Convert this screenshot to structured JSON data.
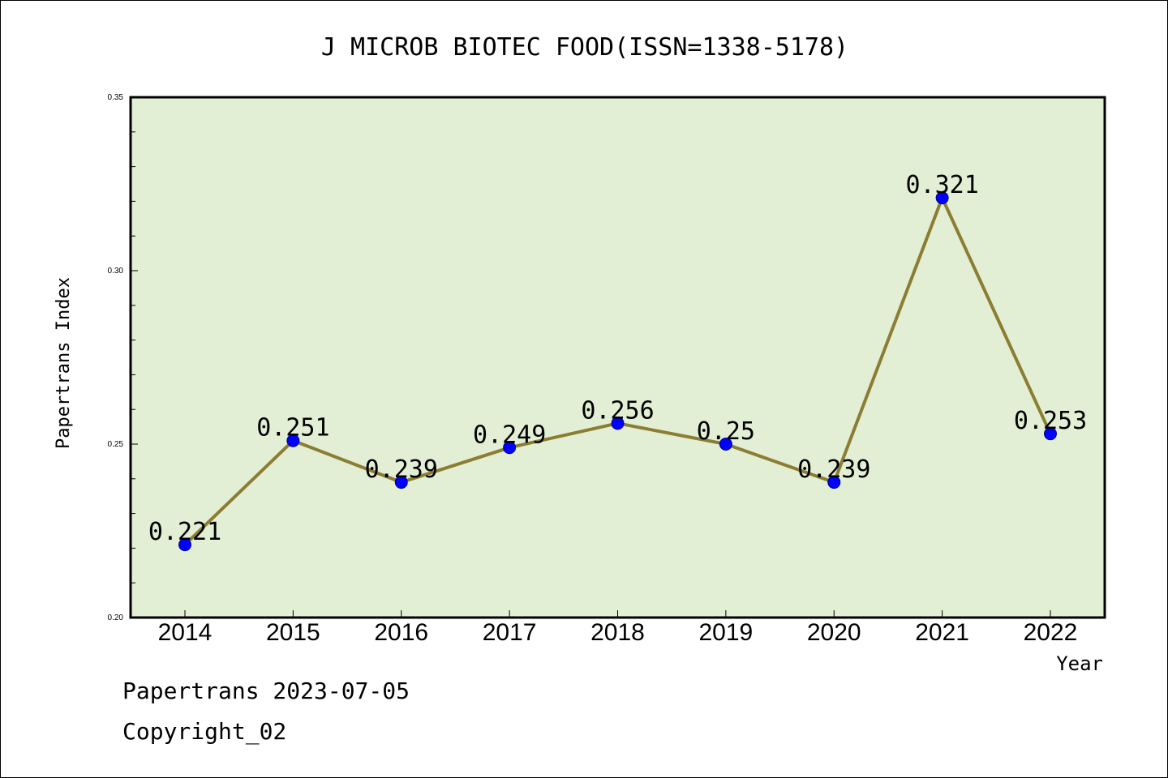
{
  "chart_data": {
    "type": "line",
    "title": "J MICROB BIOTEC FOOD(ISSN=1338-5178)",
    "xlabel": "Year",
    "ylabel": "Papertrans Index",
    "categories": [
      "2014",
      "2015",
      "2016",
      "2017",
      "2018",
      "2019",
      "2020",
      "2021",
      "2022"
    ],
    "series": [
      {
        "values": [
          0.221,
          0.251,
          0.239,
          0.249,
          0.256,
          0.25,
          0.239,
          0.321,
          0.253
        ],
        "data_labels": [
          "0.221",
          "0.251",
          "0.239",
          "0.249",
          "0.256",
          "0.25",
          "0.239",
          "0.321",
          "0.253"
        ]
      }
    ],
    "ylim": [
      0.2,
      0.35
    ],
    "yticks": [
      "0.20",
      "0.25",
      "0.30",
      "0.35"
    ],
    "grid": false,
    "colors": {
      "plot_background": "#e2efd5",
      "line": "#8b7d32",
      "marker": "#0000ff"
    }
  },
  "footer": {
    "date_line": "Papertrans 2023-07-05",
    "copyright": "Copyright_02"
  }
}
